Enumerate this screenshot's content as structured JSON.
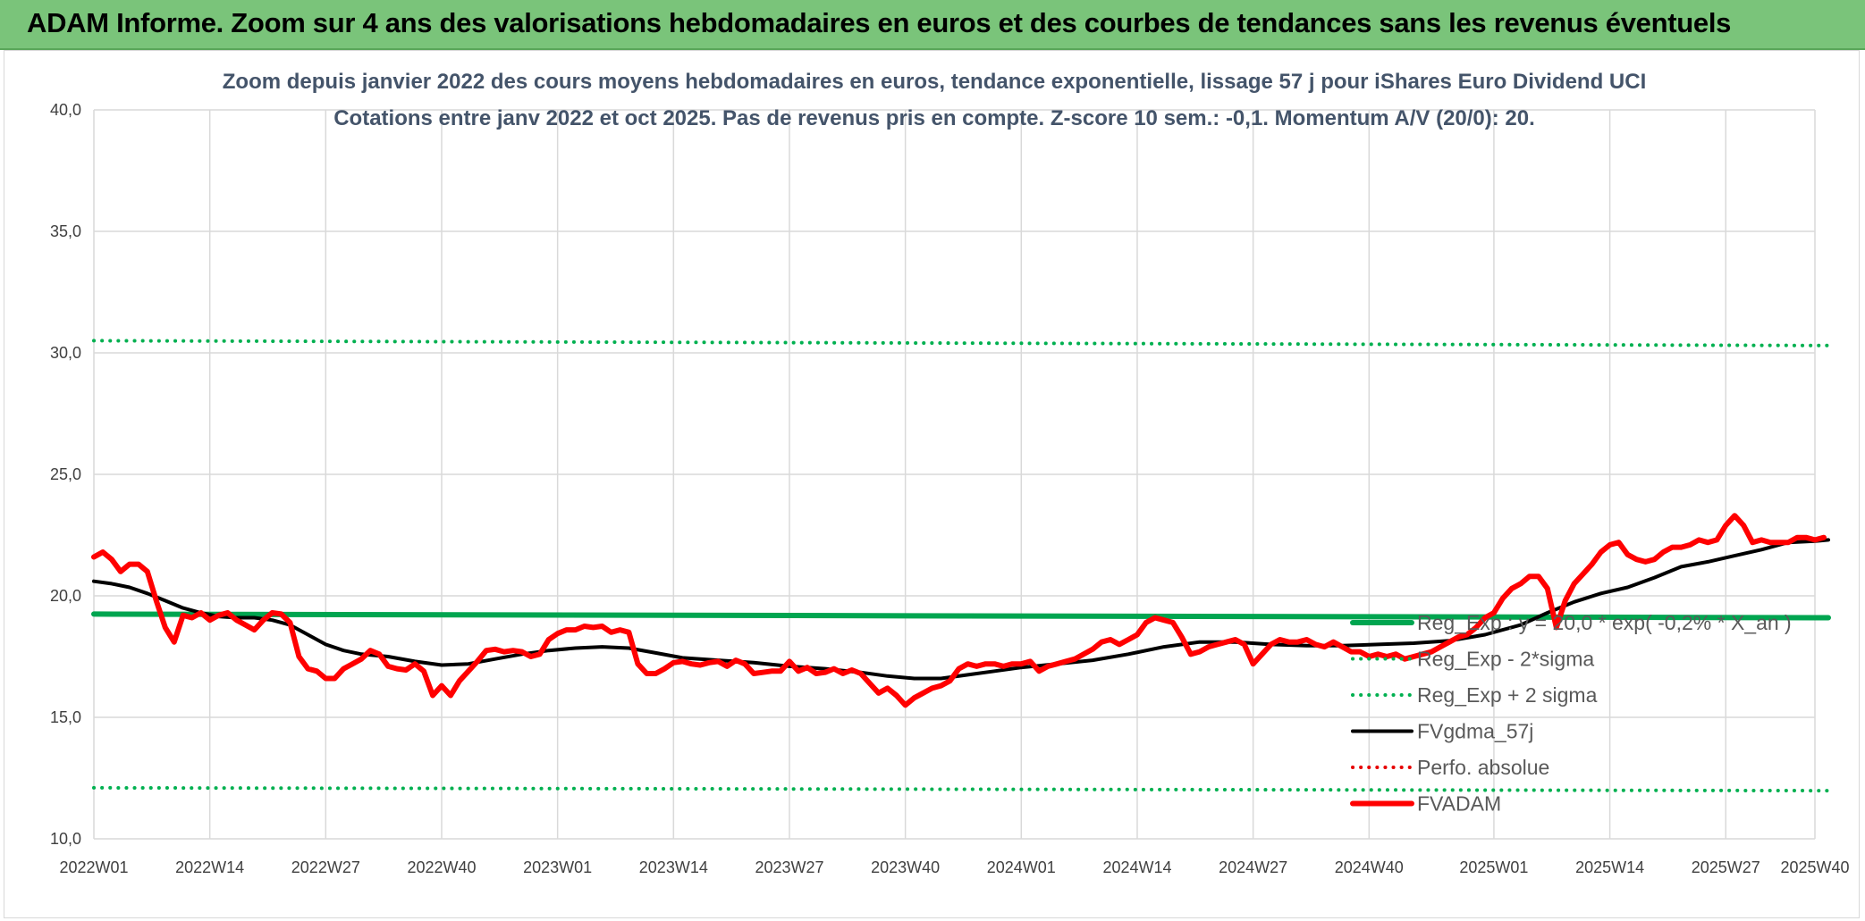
{
  "banner": {
    "title": "ADAM Informe. Zoom sur 4 ans des valorisations hebdomadaires en euros et des courbes de tendances sans les revenus éventuels",
    "background": "#7ac47a"
  },
  "chart_data": {
    "type": "line",
    "title_line1": "Zoom depuis janvier 2022 des cours moyens hebdomadaires en euros, tendance exponentielle, lissage 57 j pour iShares Euro Dividend UCI",
    "title_line2": "Cotations entre janv 2022 et oct 2025. Pas de revenus pris en compte. Z-score 10 sem.: -0,1. Momentum A/V (20/0): 20.",
    "xlabel": "",
    "ylabel": "",
    "ylim": [
      10,
      40
    ],
    "yticks": [
      "10,0",
      "15,0",
      "20,0",
      "25,0",
      "30,0",
      "35,0",
      "40,0"
    ],
    "xlim": [
      0,
      193
    ],
    "xticks": [
      {
        "label": "2022W01",
        "x": 0
      },
      {
        "label": "2022W14",
        "x": 13
      },
      {
        "label": "2022W27",
        "x": 26
      },
      {
        "label": "2022W40",
        "x": 39
      },
      {
        "label": "2023W01",
        "x": 52
      },
      {
        "label": "2023W14",
        "x": 65
      },
      {
        "label": "2023W27",
        "x": 78
      },
      {
        "label": "2023W40",
        "x": 91
      },
      {
        "label": "2024W01",
        "x": 104
      },
      {
        "label": "2024W14",
        "x": 117
      },
      {
        "label": "2024W27",
        "x": 130
      },
      {
        "label": "2024W40",
        "x": 143
      },
      {
        "label": "2025W01",
        "x": 157
      },
      {
        "label": "2025W14",
        "x": 170
      },
      {
        "label": "2025W27",
        "x": 183
      },
      {
        "label": "2025W40",
        "x": 196
      }
    ],
    "grid": true,
    "legend_position": "bottom-right",
    "series": [
      {
        "name": "Reg_Exp : y = 20,0 * exp( -0,2% * X_an )",
        "color": "#00a550",
        "style": "solid",
        "width": 6,
        "points": [
          [
            0,
            19.25
          ],
          [
            200,
            19.1
          ]
        ]
      },
      {
        "name": "Reg_Exp - 2*sigma",
        "color": "#00b050",
        "style": "dotted",
        "width": 4,
        "points": [
          [
            0,
            12.1
          ],
          [
            200,
            11.98
          ]
        ]
      },
      {
        "name": "Reg_Exp + 2 sigma",
        "color": "#00b050",
        "style": "dotted",
        "width": 4,
        "points": [
          [
            0,
            30.5
          ],
          [
            200,
            30.3
          ]
        ]
      },
      {
        "name": "FVgdma_57j",
        "color": "#000000",
        "style": "solid",
        "width": 4,
        "points": [
          [
            0,
            20.6
          ],
          [
            2,
            20.5
          ],
          [
            4,
            20.35
          ],
          [
            6,
            20.1
          ],
          [
            8,
            19.8
          ],
          [
            10,
            19.5
          ],
          [
            12,
            19.3
          ],
          [
            14,
            19.15
          ],
          [
            16,
            19.1
          ],
          [
            18,
            19.1
          ],
          [
            20,
            19.0
          ],
          [
            22,
            18.8
          ],
          [
            24,
            18.4
          ],
          [
            26,
            18.0
          ],
          [
            28,
            17.75
          ],
          [
            30,
            17.6
          ],
          [
            33,
            17.5
          ],
          [
            36,
            17.3
          ],
          [
            39,
            17.15
          ],
          [
            42,
            17.2
          ],
          [
            45,
            17.4
          ],
          [
            48,
            17.6
          ],
          [
            51,
            17.75
          ],
          [
            54,
            17.85
          ],
          [
            57,
            17.9
          ],
          [
            60,
            17.85
          ],
          [
            63,
            17.65
          ],
          [
            66,
            17.45
          ],
          [
            70,
            17.35
          ],
          [
            74,
            17.25
          ],
          [
            78,
            17.1
          ],
          [
            82,
            17.0
          ],
          [
            86,
            16.85
          ],
          [
            89,
            16.7
          ],
          [
            92,
            16.6
          ],
          [
            95,
            16.6
          ],
          [
            98,
            16.75
          ],
          [
            101,
            16.9
          ],
          [
            104,
            17.05
          ],
          [
            108,
            17.2
          ],
          [
            112,
            17.35
          ],
          [
            116,
            17.6
          ],
          [
            120,
            17.9
          ],
          [
            124,
            18.1
          ],
          [
            128,
            18.1
          ],
          [
            132,
            18.0
          ],
          [
            136,
            17.95
          ],
          [
            140,
            17.95
          ],
          [
            144,
            18.0
          ],
          [
            148,
            18.05
          ],
          [
            152,
            18.15
          ],
          [
            156,
            18.4
          ],
          [
            160,
            18.8
          ],
          [
            163,
            19.3
          ],
          [
            166,
            19.75
          ],
          [
            169,
            20.1
          ],
          [
            172,
            20.35
          ],
          [
            175,
            20.75
          ],
          [
            178,
            21.2
          ],
          [
            181,
            21.4
          ],
          [
            184,
            21.65
          ],
          [
            187,
            21.9
          ],
          [
            190,
            22.2
          ],
          [
            193,
            22.25
          ],
          [
            197,
            22.3
          ]
        ]
      },
      {
        "name": "Perfo. absolue",
        "color": "#e60000",
        "style": "dotted",
        "width": 4,
        "points": []
      },
      {
        "name": "FVADAM",
        "color": "#ff0000",
        "style": "solid",
        "width": 6,
        "points": [
          [
            0,
            21.6
          ],
          [
            1,
            21.8
          ],
          [
            2,
            21.5
          ],
          [
            3,
            21.0
          ],
          [
            4,
            21.3
          ],
          [
            5,
            21.3
          ],
          [
            6,
            21.0
          ],
          [
            7,
            19.8
          ],
          [
            8,
            18.7
          ],
          [
            9,
            18.1
          ],
          [
            10,
            19.2
          ],
          [
            11,
            19.1
          ],
          [
            12,
            19.3
          ],
          [
            13,
            19.0
          ],
          [
            14,
            19.2
          ],
          [
            15,
            19.3
          ],
          [
            16,
            19.0
          ],
          [
            17,
            18.8
          ],
          [
            18,
            18.6
          ],
          [
            19,
            19.0
          ],
          [
            20,
            19.3
          ],
          [
            21,
            19.25
          ],
          [
            22,
            18.9
          ],
          [
            23,
            17.5
          ],
          [
            24,
            17.0
          ],
          [
            25,
            16.9
          ],
          [
            26,
            16.6
          ],
          [
            27,
            16.6
          ],
          [
            28,
            17.0
          ],
          [
            29,
            17.2
          ],
          [
            30,
            17.4
          ],
          [
            31,
            17.75
          ],
          [
            32,
            17.6
          ],
          [
            33,
            17.1
          ],
          [
            34,
            17.0
          ],
          [
            35,
            16.95
          ],
          [
            36,
            17.2
          ],
          [
            37,
            16.9
          ],
          [
            38,
            15.9
          ],
          [
            39,
            16.3
          ],
          [
            40,
            15.9
          ],
          [
            41,
            16.5
          ],
          [
            42,
            16.9
          ],
          [
            43,
            17.3
          ],
          [
            44,
            17.75
          ],
          [
            45,
            17.8
          ],
          [
            46,
            17.7
          ],
          [
            47,
            17.75
          ],
          [
            48,
            17.7
          ],
          [
            49,
            17.5
          ],
          [
            50,
            17.6
          ],
          [
            51,
            18.2
          ],
          [
            52,
            18.45
          ],
          [
            53,
            18.6
          ],
          [
            54,
            18.6
          ],
          [
            55,
            18.75
          ],
          [
            56,
            18.7
          ],
          [
            57,
            18.75
          ],
          [
            58,
            18.5
          ],
          [
            59,
            18.6
          ],
          [
            60,
            18.5
          ],
          [
            61,
            17.2
          ],
          [
            62,
            16.8
          ],
          [
            63,
            16.8
          ],
          [
            64,
            17.0
          ],
          [
            65,
            17.25
          ],
          [
            66,
            17.3
          ],
          [
            67,
            17.2
          ],
          [
            68,
            17.15
          ],
          [
            69,
            17.25
          ],
          [
            70,
            17.3
          ],
          [
            71,
            17.1
          ],
          [
            72,
            17.35
          ],
          [
            73,
            17.2
          ],
          [
            74,
            16.8
          ],
          [
            75,
            16.85
          ],
          [
            76,
            16.9
          ],
          [
            77,
            16.9
          ],
          [
            78,
            17.3
          ],
          [
            79,
            16.9
          ],
          [
            80,
            17.05
          ],
          [
            81,
            16.8
          ],
          [
            82,
            16.85
          ],
          [
            83,
            17.0
          ],
          [
            84,
            16.8
          ],
          [
            85,
            16.95
          ],
          [
            86,
            16.8
          ],
          [
            87,
            16.4
          ],
          [
            88,
            16.0
          ],
          [
            89,
            16.2
          ],
          [
            90,
            15.9
          ],
          [
            91,
            15.5
          ],
          [
            92,
            15.8
          ],
          [
            93,
            16.0
          ],
          [
            94,
            16.2
          ],
          [
            95,
            16.3
          ],
          [
            96,
            16.5
          ],
          [
            97,
            17.0
          ],
          [
            98,
            17.2
          ],
          [
            99,
            17.1
          ],
          [
            100,
            17.2
          ],
          [
            101,
            17.2
          ],
          [
            102,
            17.1
          ],
          [
            103,
            17.2
          ],
          [
            104,
            17.2
          ],
          [
            105,
            17.3
          ],
          [
            106,
            16.9
          ],
          [
            107,
            17.1
          ],
          [
            108,
            17.2
          ],
          [
            109,
            17.3
          ],
          [
            110,
            17.4
          ],
          [
            111,
            17.6
          ],
          [
            112,
            17.8
          ],
          [
            113,
            18.1
          ],
          [
            114,
            18.2
          ],
          [
            115,
            18.0
          ],
          [
            116,
            18.2
          ],
          [
            117,
            18.4
          ],
          [
            118,
            18.9
          ],
          [
            119,
            19.1
          ],
          [
            120,
            19.0
          ],
          [
            121,
            18.9
          ],
          [
            122,
            18.3
          ],
          [
            123,
            17.6
          ],
          [
            124,
            17.7
          ],
          [
            125,
            17.9
          ],
          [
            126,
            18.0
          ],
          [
            127,
            18.1
          ],
          [
            128,
            18.2
          ],
          [
            129,
            18.0
          ],
          [
            130,
            17.2
          ],
          [
            131,
            17.6
          ],
          [
            132,
            18.0
          ],
          [
            133,
            18.2
          ],
          [
            134,
            18.1
          ],
          [
            135,
            18.1
          ],
          [
            136,
            18.2
          ],
          [
            137,
            18.0
          ],
          [
            138,
            17.9
          ],
          [
            139,
            18.1
          ],
          [
            140,
            17.9
          ],
          [
            141,
            17.7
          ],
          [
            142,
            17.7
          ],
          [
            143,
            17.5
          ],
          [
            144,
            17.6
          ],
          [
            145,
            17.5
          ],
          [
            146,
            17.6
          ],
          [
            147,
            17.4
          ],
          [
            148,
            17.5
          ],
          [
            149,
            17.6
          ],
          [
            150,
            17.7
          ],
          [
            151,
            17.9
          ],
          [
            152,
            18.1
          ],
          [
            153,
            18.3
          ],
          [
            154,
            18.4
          ],
          [
            155,
            18.7
          ],
          [
            156,
            19.1
          ],
          [
            157,
            19.3
          ],
          [
            158,
            19.9
          ],
          [
            159,
            20.3
          ],
          [
            160,
            20.5
          ],
          [
            161,
            20.8
          ],
          [
            162,
            20.8
          ],
          [
            163,
            20.3
          ],
          [
            164,
            18.7
          ],
          [
            165,
            19.8
          ],
          [
            166,
            20.5
          ],
          [
            167,
            20.9
          ],
          [
            168,
            21.3
          ],
          [
            169,
            21.8
          ],
          [
            170,
            22.1
          ],
          [
            171,
            22.2
          ],
          [
            172,
            21.7
          ],
          [
            173,
            21.5
          ],
          [
            174,
            21.4
          ],
          [
            175,
            21.5
          ],
          [
            176,
            21.8
          ],
          [
            177,
            22.0
          ],
          [
            178,
            22.0
          ],
          [
            179,
            22.1
          ],
          [
            180,
            22.3
          ],
          [
            181,
            22.2
          ],
          [
            182,
            22.3
          ],
          [
            183,
            22.9
          ],
          [
            184,
            23.3
          ],
          [
            185,
            22.9
          ],
          [
            186,
            22.2
          ],
          [
            187,
            22.3
          ],
          [
            188,
            22.2
          ],
          [
            189,
            22.2
          ],
          [
            190,
            22.2
          ],
          [
            191,
            22.4
          ],
          [
            192,
            22.4
          ],
          [
            193,
            22.3
          ],
          [
            194,
            22.4
          ]
        ]
      }
    ]
  }
}
